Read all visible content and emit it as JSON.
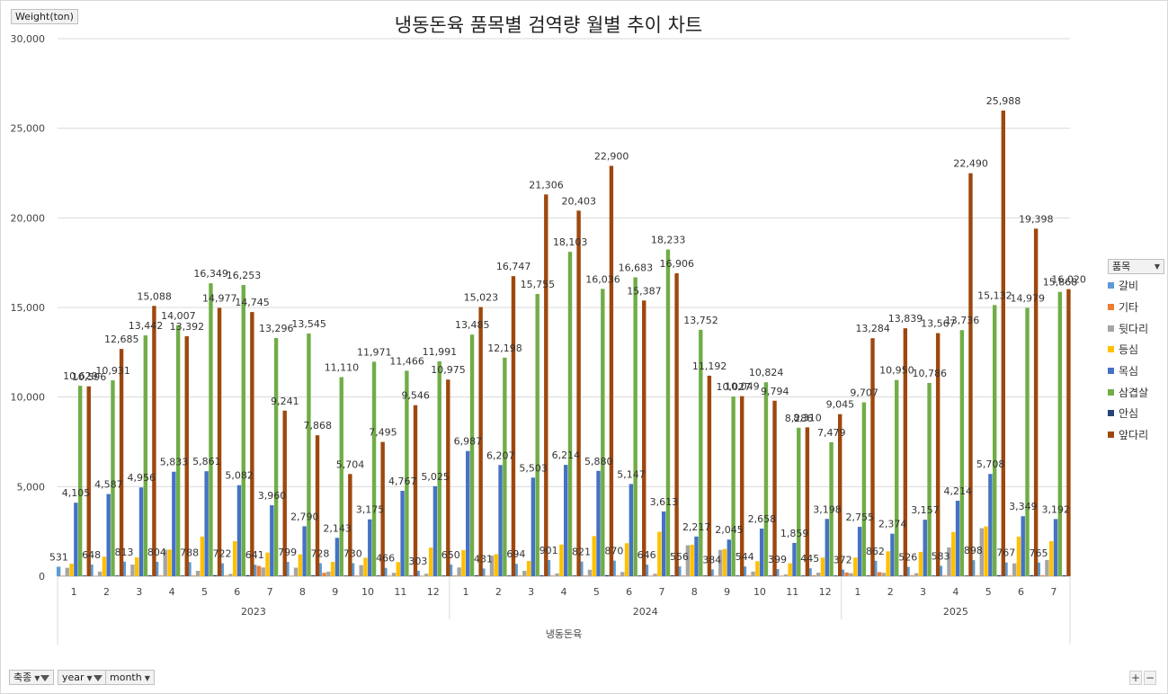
{
  "chart_data": {
    "type": "bar",
    "title": "냉동돈육  품목별 검역량 월별 추이 차트",
    "ylabel": "Weight(ton)",
    "xlabel": "냉동돈육",
    "ylim": [
      0,
      30000
    ],
    "yticks": [
      "0",
      "5,000",
      "10,000",
      "15,000",
      "20,000",
      "25,000",
      "30,000"
    ],
    "grid": true,
    "legend_title": "품목",
    "legend_position": "right",
    "years": [
      {
        "label": "2023",
        "months": [
          "1",
          "2",
          "3",
          "4",
          "5",
          "6",
          "7",
          "8",
          "9",
          "10",
          "11",
          "12"
        ]
      },
      {
        "label": "2024",
        "months": [
          "1",
          "2",
          "3",
          "4",
          "5",
          "6",
          "7",
          "8",
          "9",
          "10",
          "11",
          "12"
        ]
      },
      {
        "label": "2025",
        "months": [
          "1",
          "2",
          "3",
          "4",
          "5",
          "6",
          "7"
        ]
      }
    ],
    "series": [
      {
        "name": "갈비",
        "color": "#5B9BD5",
        "values": [
          531,
          648,
          813,
          804,
          788,
          722,
          641,
          799,
          728,
          730,
          466,
          303,
          650,
          431,
          694,
          901,
          821,
          870,
          646,
          556,
          384,
          544,
          399,
          445,
          372,
          862,
          526,
          583,
          898,
          767,
          765
        ]
      },
      {
        "name": "기타",
        "color": "#ED7D31",
        "values": [
          30,
          20,
          30,
          40,
          40,
          40,
          580,
          30,
          190,
          40,
          30,
          30,
          40,
          30,
          40,
          40,
          40,
          40,
          30,
          40,
          30,
          40,
          30,
          50,
          210,
          230,
          50,
          40,
          40,
          40,
          50
        ]
      },
      {
        "name": "뒷다리",
        "color": "#A5A5A5",
        "values": [
          470,
          260,
          650,
          1480,
          300,
          130,
          490,
          480,
          260,
          620,
          190,
          140,
          490,
          1150,
          300,
          160,
          360,
          240,
          140,
          1730,
          1470,
          260,
          100,
          200,
          170,
          190,
          170,
          1610,
          2680,
          720,
          910
        ]
      },
      {
        "name": "등심",
        "color": "#FFC000",
        "values": [
          700,
          1090,
          1050,
          1490,
          2210,
          1960,
          1320,
          1220,
          800,
          1030,
          790,
          1600,
          1460,
          1230,
          850,
          1770,
          2240,
          1840,
          2480,
          1750,
          1520,
          840,
          720,
          1040,
          1040,
          1390,
          1360,
          2470,
          2780,
          2210,
          1960
        ]
      },
      {
        "name": "목심",
        "color": "#4472C4",
        "values": [
          4105,
          4587,
          4956,
          5833,
          5861,
          5082,
          3960,
          2790,
          2143,
          3175,
          4767,
          5025,
          6987,
          6207,
          5503,
          6214,
          5880,
          5147,
          3613,
          2217,
          2045,
          2658,
          1859,
          3198,
          2755,
          2374,
          3157,
          4214,
          5708,
          3349,
          3192
        ]
      },
      {
        "name": "삼겹살",
        "color": "#70AD47",
        "values": [
          10629,
          10931,
          13442,
          14007,
          16349,
          16253,
          13296,
          13545,
          11110,
          11971,
          11466,
          11991,
          13485,
          12198,
          15755,
          18103,
          16036,
          16683,
          18233,
          13752,
          10027,
          10824,
          8286,
          7479,
          9707,
          10950,
          10786,
          13736,
          15132,
          14979,
          15868
        ]
      },
      {
        "name": "안심",
        "color": "#264478",
        "values": [
          40,
          40,
          50,
          40,
          60,
          60,
          40,
          50,
          40,
          40,
          40,
          40,
          50,
          40,
          50,
          40,
          60,
          40,
          50,
          40,
          40,
          40,
          40,
          40,
          40,
          40,
          40,
          40,
          60,
          60,
          50
        ]
      },
      {
        "name": "앞다리",
        "color": "#9E480E",
        "values": [
          10596,
          12685,
          15088,
          13392,
          14977,
          14745,
          9241,
          7868,
          5704,
          7495,
          9546,
          10975,
          15023,
          16747,
          21306,
          20403,
          22900,
          15387,
          16906,
          11192,
          10049,
          9794,
          8310,
          9045,
          13284,
          13839,
          13567,
          22490,
          25988,
          19398,
          16020
        ]
      }
    ],
    "labeled_series": [
      "갈비",
      "목심",
      "삼겹살",
      "앞다리"
    ]
  },
  "filters": {
    "field1": "축종",
    "field2": "year",
    "field3": "month"
  },
  "controls": {
    "zoom_in": "+",
    "zoom_out": "−"
  }
}
